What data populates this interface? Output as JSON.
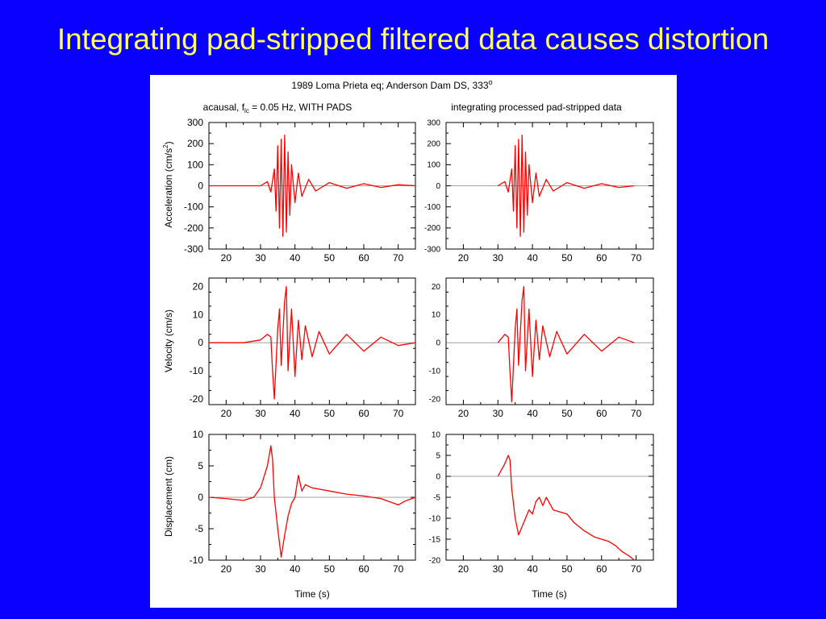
{
  "slide": {
    "title": "Integrating pad-stripped filtered data causes distortion"
  },
  "figure": {
    "header": {
      "main": "1989  Loma  Prieta  eq;  Anderson   Dam  DS,  333",
      "degree": "o"
    },
    "left_heading": {
      "pre": "acausal,  f",
      "sub": "lc",
      "post": " = 0.05  Hz,  WITH   PADS"
    },
    "right_heading": "integrating   processed   pad-stripped   data",
    "xlabel": "Time  (s)",
    "ylabel_acc": {
      "pre": "Acceleration (cm/s",
      "sup": "2",
      "post": ")"
    },
    "ylabel_vel": "Velocity (cm/s)",
    "ylabel_disp": "Displacement (cm)"
  },
  "colors": {
    "trace": "#ff0000",
    "zero_line": "#a0a0a0",
    "axis": "#000000",
    "background_slide": "#0a00ff",
    "title": "#ffff66"
  },
  "chart_data": [
    {
      "id": "acc-left",
      "type": "line",
      "row": 0,
      "col": 0,
      "xlim": [
        15,
        75
      ],
      "ylim": [
        -300,
        300
      ],
      "x_ticks": [
        20,
        30,
        40,
        50,
        60,
        70
      ],
      "y_ticks": [
        300,
        200,
        100,
        0,
        -100,
        -200,
        -300
      ],
      "series": [
        {
          "x": [
            15,
            25,
            30,
            32,
            33,
            34,
            34.5,
            35,
            35.5,
            36,
            36.5,
            37,
            37.5,
            38,
            38.5,
            39,
            40,
            41,
            42,
            44,
            46,
            50,
            55,
            60,
            65,
            70,
            75
          ],
          "y": [
            0,
            0,
            0,
            20,
            -30,
            80,
            -120,
            190,
            -200,
            220,
            -240,
            240,
            -220,
            160,
            -140,
            100,
            -80,
            60,
            -50,
            30,
            -25,
            15,
            -12,
            10,
            -8,
            5,
            0
          ]
        }
      ]
    },
    {
      "id": "acc-right",
      "type": "line",
      "row": 0,
      "col": 1,
      "xlim": [
        15,
        75
      ],
      "ylim": [
        -300,
        300
      ],
      "x_ticks": [
        20,
        30,
        40,
        50,
        60,
        70
      ],
      "y_ticks": [
        300,
        200,
        100,
        0,
        -100,
        -200,
        -300
      ],
      "series": [
        {
          "x": [
            30,
            32,
            33,
            34,
            34.5,
            35,
            35.5,
            36,
            36.5,
            37,
            37.5,
            38,
            38.5,
            39,
            40,
            41,
            42,
            44,
            46,
            50,
            55,
            60,
            65,
            69.5
          ],
          "y": [
            0,
            20,
            -30,
            80,
            -120,
            190,
            -200,
            220,
            -240,
            240,
            -220,
            160,
            -140,
            100,
            -80,
            60,
            -50,
            30,
            -25,
            15,
            -12,
            10,
            -8,
            0
          ]
        }
      ]
    },
    {
      "id": "vel-left",
      "type": "line",
      "row": 1,
      "col": 0,
      "xlim": [
        15,
        75
      ],
      "ylim": [
        -22,
        23
      ],
      "x_ticks": [
        20,
        30,
        40,
        50,
        60,
        70
      ],
      "y_ticks": [
        20,
        10,
        0,
        -10,
        -20
      ],
      "series": [
        {
          "x": [
            15,
            25,
            30,
            32,
            33,
            33.5,
            34,
            35,
            35.5,
            36,
            37,
            37.5,
            38,
            39,
            40,
            41,
            42,
            43,
            45,
            47,
            50,
            55,
            60,
            65,
            70,
            75
          ],
          "y": [
            0,
            0,
            1,
            3,
            2,
            -10,
            -20,
            5,
            12,
            -8,
            15,
            20,
            -10,
            12,
            -12,
            8,
            -6,
            6,
            -5,
            4,
            -4,
            3,
            -3,
            2,
            -1,
            0
          ]
        }
      ]
    },
    {
      "id": "vel-right",
      "type": "line",
      "row": 1,
      "col": 1,
      "xlim": [
        15,
        75
      ],
      "ylim": [
        -22,
        23
      ],
      "x_ticks": [
        20,
        30,
        40,
        50,
        60,
        70
      ],
      "y_ticks": [
        20,
        10,
        0,
        -10,
        -20
      ],
      "series": [
        {
          "x": [
            30,
            32,
            33,
            33.5,
            34,
            35,
            35.5,
            36,
            37,
            37.5,
            38,
            39,
            40,
            41,
            42,
            43,
            45,
            47,
            50,
            55,
            60,
            65,
            69.5
          ],
          "y": [
            0,
            3,
            2,
            -10,
            -21,
            5,
            12,
            -8,
            15,
            20,
            -10,
            12,
            -12,
            8,
            -6,
            6,
            -5,
            4,
            -4,
            3,
            -3,
            2,
            0
          ]
        }
      ]
    },
    {
      "id": "disp-left",
      "type": "line",
      "row": 2,
      "col": 0,
      "xlim": [
        15,
        75
      ],
      "ylim": [
        -10,
        10
      ],
      "x_ticks": [
        20,
        30,
        40,
        50,
        60,
        70
      ],
      "y_ticks": [
        10,
        5,
        0,
        -5,
        -10
      ],
      "series": [
        {
          "x": [
            15,
            20,
            25,
            28,
            30,
            32,
            33,
            33.5,
            34,
            35,
            36,
            37,
            38,
            39,
            40,
            41,
            42,
            43,
            45,
            48,
            50,
            55,
            60,
            65,
            70,
            72,
            75
          ],
          "y": [
            0,
            -0.2,
            -0.5,
            0,
            1.5,
            5,
            8.2,
            6,
            0,
            -5,
            -9.5,
            -6,
            -3,
            -1,
            0,
            3.5,
            1,
            2,
            1.5,
            1.2,
            1,
            0.5,
            0.2,
            -0.2,
            -1.2,
            -0.6,
            0
          ]
        }
      ]
    },
    {
      "id": "disp-right",
      "type": "line",
      "row": 2,
      "col": 1,
      "xlim": [
        15,
        75
      ],
      "ylim": [
        -20,
        10
      ],
      "x_ticks": [
        20,
        30,
        40,
        50,
        60,
        70
      ],
      "y_ticks": [
        10,
        5,
        0,
        -5,
        -10,
        -15,
        -20
      ],
      "series": [
        {
          "x": [
            30,
            31,
            32,
            33,
            33.5,
            34,
            35,
            36,
            37,
            38,
            39,
            40,
            41,
            42,
            43,
            44,
            46,
            48,
            50,
            52,
            55,
            58,
            60,
            62,
            64,
            66,
            68,
            69.5
          ],
          "y": [
            0,
            1.5,
            3,
            5,
            4,
            -3,
            -10,
            -14,
            -12,
            -10,
            -8,
            -9,
            -6,
            -5,
            -7,
            -5,
            -8,
            -8.5,
            -9,
            -11,
            -13,
            -14.5,
            -15,
            -15.5,
            -16.5,
            -18,
            -19,
            -20
          ]
        }
      ]
    }
  ]
}
